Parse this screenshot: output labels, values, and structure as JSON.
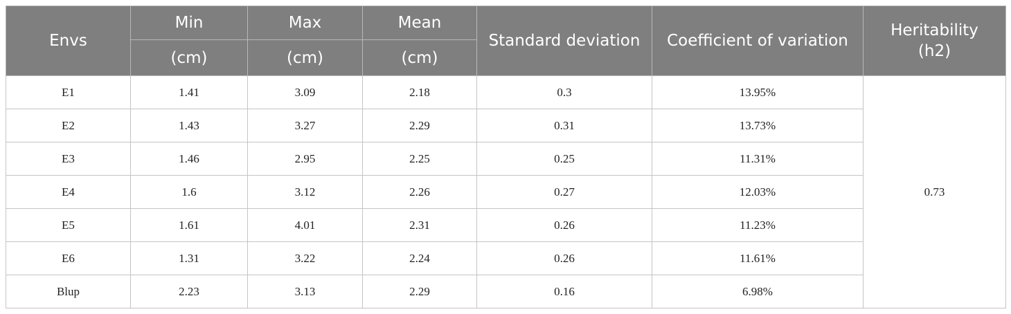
{
  "header": {
    "envs": "Envs",
    "min": "Min",
    "max": "Max",
    "mean": "Mean",
    "unit": "(cm)",
    "std": "Standard deviation",
    "cv": "Coefficient of variation",
    "heritability_line1": "Heritability",
    "heritability_line2": "(h2)"
  },
  "rows": [
    {
      "env": "E1",
      "min": "1.41",
      "max": "3.09",
      "mean": "2.18",
      "std": "0.3",
      "cv": "13.95%"
    },
    {
      "env": "E2",
      "min": "1.43",
      "max": "3.27",
      "mean": "2.29",
      "std": "0.31",
      "cv": "13.73%"
    },
    {
      "env": "E3",
      "min": "1.46",
      "max": "2.95",
      "mean": "2.25",
      "std": "0.25",
      "cv": "11.31%"
    },
    {
      "env": "E4",
      "min": "1.6",
      "max": "3.12",
      "mean": "2.26",
      "std": "0.27",
      "cv": "12.03%"
    },
    {
      "env": "E5",
      "min": "1.61",
      "max": "4.01",
      "mean": "2.31",
      "std": "0.26",
      "cv": "11.23%"
    },
    {
      "env": "E6",
      "min": "1.31",
      "max": "3.22",
      "mean": "2.24",
      "std": "0.26",
      "cv": "11.61%"
    },
    {
      "env": "Blup",
      "min": "2.23",
      "max": "3.13",
      "mean": "2.29",
      "std": "0.16",
      "cv": "6.98%"
    }
  ],
  "heritability": "0.73"
}
